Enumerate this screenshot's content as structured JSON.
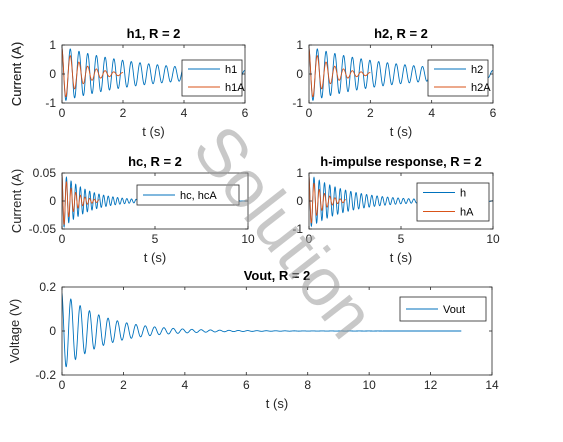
{
  "watermark": "Solution",
  "colors": {
    "series1": "#0072BD",
    "series2": "#D95319",
    "axis": "#262626",
    "watermark": "#9a9a9a"
  },
  "chart_data": [
    {
      "type": "line",
      "title": "h1, R = 2",
      "xlabel": "t (s)",
      "ylabel": "Current (A)",
      "xlim": [
        0,
        6
      ],
      "ylim": [
        -1,
        1
      ],
      "xticks": [
        0,
        2,
        4,
        6
      ],
      "yticks": [
        -1,
        0,
        1
      ],
      "legend": "right",
      "series": [
        {
          "name": "h1",
          "amplitude": 0.95,
          "decay_per_s": 0.35,
          "freq_hz": 3.5,
          "t_end": 6.0
        },
        {
          "name": "h1A",
          "amplitude": 0.95,
          "decay_per_s": 1.5,
          "freq_hz": 3.5,
          "t_end": 2.0
        }
      ]
    },
    {
      "type": "line",
      "title": "h2, R = 2",
      "xlabel": "t (s)",
      "ylabel": "Current (A)",
      "xlim": [
        0,
        6
      ],
      "ylim": [
        -1,
        1
      ],
      "xticks": [
        0,
        2,
        4,
        6
      ],
      "yticks": [
        -1,
        0,
        1
      ],
      "legend": "right",
      "series": [
        {
          "name": "h2",
          "amplitude": 0.95,
          "decay_per_s": 0.35,
          "freq_hz": 3.5,
          "t_end": 6.0
        },
        {
          "name": "h2A",
          "amplitude": 0.95,
          "decay_per_s": 1.5,
          "freq_hz": 3.5,
          "t_end": 2.0
        }
      ]
    },
    {
      "type": "line",
      "title": "hc, R = 2",
      "xlabel": "t (s)",
      "ylabel": "Current (A)",
      "xlim": [
        0,
        10
      ],
      "ylim": [
        -0.05,
        0.05
      ],
      "xticks": [
        0,
        5,
        10
      ],
      "yticks": [
        -0.05,
        0,
        0.05
      ],
      "legend": "right",
      "legend_entries": [
        "hc, hcA"
      ],
      "series": [
        {
          "name": "hc",
          "amplitude": 0.05,
          "decay_per_s": 0.7,
          "freq_hz": 4.0,
          "t_end": 10.0
        },
        {
          "name": "hcA",
          "amplitude": 0.05,
          "decay_per_s": 1.6,
          "freq_hz": 4.0,
          "t_end": 2.0
        }
      ]
    },
    {
      "type": "line",
      "title": "h-impulse response, R = 2",
      "xlabel": "t (s)",
      "ylabel": "",
      "xlim": [
        0,
        10
      ],
      "ylim": [
        -1,
        1
      ],
      "xticks": [
        0,
        5,
        10
      ],
      "yticks": [
        -1,
        0,
        1
      ],
      "legend": "right",
      "series": [
        {
          "name": "h",
          "amplitude": 0.95,
          "decay_per_s": 0.45,
          "freq_hz": 3.5,
          "t_end": 10.0
        },
        {
          "name": "hA",
          "amplitude": 0.95,
          "decay_per_s": 1.5,
          "freq_hz": 3.5,
          "t_end": 2.0
        }
      ]
    },
    {
      "type": "line",
      "title": "Vout, R = 2",
      "xlabel": "t (s)",
      "ylabel": "Voltage (V)",
      "xlim": [
        0,
        14
      ],
      "ylim": [
        -0.2,
        0.2
      ],
      "xticks": [
        0,
        2,
        4,
        6,
        8,
        10,
        12,
        14
      ],
      "yticks": [
        -0.2,
        0,
        0.2
      ],
      "legend": "right",
      "series": [
        {
          "name": "Vout",
          "amplitude": 0.18,
          "decay_per_s": 0.75,
          "freq_hz": 3.3,
          "t_end": 13.0
        }
      ]
    }
  ]
}
